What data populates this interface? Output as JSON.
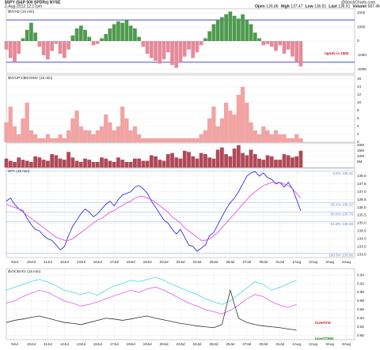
{
  "header": {
    "title": "$SPY (S&P 500 SPDRs) NYSE",
    "date": "2-Aug-2012 12:17pm",
    "source": "@StockCharts.com",
    "stats": [
      {
        "label": "Open",
        "value": "136.86"
      },
      {
        "label": "High",
        "value": "137.47"
      },
      {
        "label": "Low",
        "value": "136.81"
      },
      {
        "label": "Last",
        "value": "136.91"
      },
      {
        "label": "Volume",
        "value": "587.4M"
      },
      {
        "label": "Chg",
        "value": "-1.41 (-1.02%)"
      }
    ]
  },
  "chart_data": [
    {
      "type": "bar",
      "title": "$NYAD (15 min)",
      "colors": {
        "up": "#4f9a4f",
        "down": "#e58a9a"
      },
      "xlim": [
        0,
        84
      ],
      "ylim": [
        -2300,
        2300
      ],
      "yticks": [
        -2000,
        -1000,
        0,
        1000,
        2000
      ],
      "hlines": [
        {
          "value": 1500,
          "color": "#4a4ad8"
        },
        {
          "value": -1500,
          "color": "#4a4ad8"
        }
      ],
      "annotations": [
        {
          "text": "ngndv is 1500",
          "color": "#d01010"
        }
      ],
      "values": [
        -600,
        -1200,
        -1500,
        -900,
        200,
        800,
        1300,
        600,
        -400,
        -1000,
        -1300,
        -700,
        -200,
        -900,
        -1200,
        -600,
        400,
        900,
        1100,
        800,
        300,
        -300,
        -200,
        200,
        500,
        900,
        1200,
        1400,
        1300,
        1500,
        1100,
        900,
        300,
        -400,
        -900,
        -1200,
        -1400,
        -1600,
        -1300,
        -800,
        -1700,
        -1900,
        -1500,
        -1100,
        -600,
        -1200,
        -800,
        -300,
        200,
        700,
        1200,
        1500,
        1700,
        1900,
        2100,
        1800,
        1600,
        1900,
        1500,
        1200,
        600,
        200,
        -300,
        -200,
        -400,
        -700,
        -300,
        -900,
        -600,
        -1100,
        -1500,
        -1800
      ]
    },
    {
      "type": "area",
      "title": "$NYUPV:$NYDNV (15 min)",
      "color": "#f2a3a3",
      "xlim": [
        0,
        84
      ],
      "ylim": [
        0,
        17
      ],
      "yticks": [
        0,
        2,
        4,
        6,
        8,
        10,
        12,
        14,
        16
      ],
      "values": [
        5,
        9,
        4,
        2,
        6,
        10,
        3,
        2,
        1,
        1,
        2,
        1,
        1,
        2,
        1,
        3,
        6,
        8,
        4,
        3,
        3,
        2,
        3,
        4,
        7,
        5,
        3,
        4,
        9,
        6,
        3,
        4,
        2,
        1,
        1,
        1,
        1,
        1,
        1,
        1,
        1,
        1,
        1,
        1,
        1,
        1,
        1,
        2,
        3,
        6,
        9,
        4,
        6,
        10,
        8,
        7,
        12,
        14,
        10,
        5,
        3,
        2,
        4,
        3,
        2,
        3,
        2,
        2,
        1,
        1,
        2,
        1
      ]
    },
    {
      "type": "bar",
      "color": "#b04858",
      "xlim": [
        0,
        84
      ],
      "ylim": [
        0,
        22
      ],
      "yticks": [
        {
          "value": 5,
          "label": "5M"
        },
        {
          "value": 10,
          "label": "10M"
        },
        {
          "value": 15,
          "label": "15M"
        },
        {
          "value": 20,
          "label": "20M"
        }
      ],
      "values": [
        8,
        6,
        5,
        9,
        7,
        6,
        5,
        10,
        9,
        7,
        6,
        12,
        11,
        8,
        7,
        14,
        9,
        6,
        5,
        8,
        7,
        5,
        5,
        9,
        8,
        6,
        5,
        9,
        7,
        5,
        5,
        8,
        8,
        6,
        6,
        11,
        10,
        7,
        6,
        12,
        13,
        9,
        8,
        15,
        14,
        10,
        8,
        13,
        12,
        9,
        8,
        16,
        18,
        12,
        10,
        17,
        20,
        13,
        11,
        16,
        12,
        8,
        7,
        11,
        10,
        7,
        7,
        12,
        11,
        9,
        10,
        15
      ]
    },
    {
      "type": "line",
      "title": "SPY (15 min)",
      "xlim": [
        0,
        84
      ],
      "ylim": [
        132.8,
        138.5
      ],
      "yticks": [
        {
          "value": 133,
          "label": "133.0"
        },
        133.5,
        {
          "value": 134,
          "label": "134.0"
        },
        134.5,
        {
          "value": 135,
          "label": "135.0"
        },
        135.5,
        {
          "value": 136,
          "label": "136.0"
        },
        136.5,
        {
          "value": 137,
          "label": "137.0"
        },
        137.5,
        {
          "value": 138,
          "label": "138.0"
        }
      ],
      "xticks": [
        {
          "value": 2,
          "label": "9Jul"
        },
        {
          "value": 6,
          "label": "10Jul"
        },
        {
          "value": 10,
          "label": "11Jul"
        },
        {
          "value": 14,
          "label": "12Jul"
        },
        {
          "value": 18,
          "label": "13Jul"
        },
        {
          "value": 22,
          "label": "16Jul"
        },
        {
          "value": 26,
          "label": "17Jul"
        },
        {
          "value": 30,
          "label": "18Jul"
        },
        {
          "value": 34,
          "label": "19Jul"
        },
        {
          "value": 38,
          "label": "20Jul"
        },
        {
          "value": 42,
          "label": "23Jul"
        },
        {
          "value": 46,
          "label": "24Jul"
        },
        {
          "value": 50,
          "label": "25Jul"
        },
        {
          "value": 54,
          "label": "26Jul"
        },
        {
          "value": 58,
          "label": "27Jul"
        },
        {
          "value": 62,
          "label": "30Jul"
        },
        {
          "value": 66,
          "label": "31Jul"
        },
        {
          "value": 70,
          "label": "1Aug"
        },
        {
          "value": 74,
          "label": "2Aug"
        },
        {
          "value": 78,
          "label": "3Aug"
        },
        {
          "value": 82,
          "label": "6Aug"
        }
      ],
      "fib_levels": [
        {
          "label": "0.0% 138.31",
          "value": 138.31
        },
        {
          "label": "38.2% 136.32",
          "value": 136.32
        },
        {
          "label": "50.0% 135.70",
          "value": 135.7
        },
        {
          "label": "61.8% 135.08",
          "value": 135.08
        },
        {
          "label": "100.0% 133.09",
          "value": 133.09
        }
      ],
      "series": [
        {
          "color": "#1a1adc",
          "values": [
            136.4,
            136.6,
            136.2,
            135.9,
            135.8,
            135.3,
            134.9,
            134.6,
            134.5,
            134.2,
            134.0,
            133.9,
            133.6,
            133.3,
            133.5,
            134.2,
            134.8,
            135.2,
            135.6,
            135.9,
            135.7,
            135.4,
            135.6,
            135.9,
            136.2,
            136.4,
            136.1,
            136.5,
            136.8,
            136.9,
            137.0,
            137.3,
            137.4,
            137.2,
            136.9,
            136.4,
            136.0,
            135.6,
            135.2,
            135.0,
            134.6,
            134.3,
            134.6,
            134.1,
            133.6,
            133.5,
            133.2,
            133.4,
            133.6,
            134.2,
            134.4,
            134.9,
            135.4,
            135.9,
            136.3,
            136.6,
            137.0,
            137.5,
            138.0,
            138.2,
            138.3,
            138.0,
            138.2,
            137.9,
            137.8,
            137.5,
            137.6,
            137.3,
            137.6,
            137.2,
            136.5,
            135.8
          ]
        },
        {
          "color": "#e040e0",
          "values": [
            136.2,
            136.1,
            136.0,
            135.9,
            135.7,
            135.5,
            135.3,
            135.1,
            134.9,
            134.7,
            134.5,
            134.3,
            134.1,
            134.0,
            133.9,
            133.9,
            134.0,
            134.2,
            134.4,
            134.6,
            134.8,
            135.0,
            135.2,
            135.3,
            135.5,
            135.7,
            135.8,
            136.0,
            136.1,
            136.3,
            136.4,
            136.6,
            136.7,
            136.7,
            136.6,
            136.5,
            136.3,
            136.1,
            135.9,
            135.7,
            135.4,
            135.2,
            135.0,
            134.7,
            134.5,
            134.3,
            134.1,
            133.9,
            133.9,
            134.0,
            134.2,
            134.4,
            134.7,
            135.0,
            135.3,
            135.6,
            135.9,
            136.2,
            136.5,
            136.8,
            137.0,
            137.2,
            137.4,
            137.5,
            137.6,
            137.6,
            137.6,
            137.5,
            137.4,
            137.2,
            136.9,
            136.6
          ]
        }
      ]
    },
    {
      "type": "line",
      "title": "$VIX:$VXV (15 min)",
      "xlim": [
        0,
        42
      ],
      "ylim": [
        0.79,
        0.955
      ],
      "yticks": [
        {
          "value": 0.8,
          "label": "0.80"
        },
        0.82,
        0.84,
        0.86,
        0.88,
        {
          "value": 0.9,
          "label": "0.90"
        },
        0.92,
        0.94
      ],
      "xticks": [
        {
          "value": 1,
          "label": "9Jul"
        },
        {
          "value": 3,
          "label": "10Jul"
        },
        {
          "value": 5,
          "label": "11Jul"
        },
        {
          "value": 7,
          "label": "12Jul"
        },
        {
          "value": 9,
          "label": "13Jul"
        },
        {
          "value": 11,
          "label": "16Jul"
        },
        {
          "value": 13,
          "label": "17Jul"
        },
        {
          "value": 15,
          "label": "18Jul"
        },
        {
          "value": 17,
          "label": "19Jul"
        },
        {
          "value": 19,
          "label": "20Jul"
        },
        {
          "value": 21,
          "label": "23Jul"
        },
        {
          "value": 23,
          "label": "24Jul"
        },
        {
          "value": 25,
          "label": "25Jul"
        },
        {
          "value": 27,
          "label": "26Jul"
        },
        {
          "value": 29,
          "label": "27Jul"
        },
        {
          "value": 31,
          "label": "30Jul"
        },
        {
          "value": 33,
          "label": "31Jul"
        },
        {
          "value": 35,
          "label": "1Aug"
        },
        {
          "value": 37,
          "label": "2Aug"
        },
        {
          "value": 39,
          "label": "3Aug"
        },
        {
          "value": 41,
          "label": "6Aug"
        }
      ],
      "annotations": [
        {
          "text": "invertVIX",
          "color": "#d01010"
        },
        {
          "text": "invertTRIN",
          "color": "#1a8a1a"
        }
      ],
      "series": [
        {
          "color": "#46d8e0",
          "values": [
            0.905,
            0.912,
            0.918,
            0.925,
            0.93,
            0.924,
            0.915,
            0.905,
            0.9,
            0.895,
            0.9,
            0.893,
            0.905,
            0.915,
            0.92,
            0.928,
            0.925,
            0.93,
            0.935,
            0.928,
            0.918,
            0.91,
            0.902,
            0.895,
            0.885,
            0.878,
            0.872,
            0.88,
            0.895,
            0.91,
            0.925,
            0.918,
            0.905,
            0.912,
            0.92,
            0.928
          ]
        },
        {
          "color": "#e060e0",
          "values": [
            0.875,
            0.88,
            0.89,
            0.898,
            0.905,
            0.9,
            0.89,
            0.88,
            0.875,
            0.868,
            0.872,
            0.878,
            0.885,
            0.892,
            0.898,
            0.905,
            0.9,
            0.908,
            0.912,
            0.905,
            0.895,
            0.885,
            0.875,
            0.868,
            0.86,
            0.855,
            0.85,
            0.858,
            0.87,
            0.885,
            0.895,
            0.89,
            0.878,
            0.87,
            0.865,
            0.872
          ]
        },
        {
          "color": "#333333",
          "values": [
            0.83,
            0.835,
            0.838,
            0.842,
            0.845,
            0.84,
            0.835,
            0.83,
            0.828,
            0.825,
            0.83,
            0.835,
            0.84,
            0.838,
            0.835,
            0.838,
            0.842,
            0.845,
            0.84,
            0.836,
            0.832,
            0.828,
            0.825,
            0.822,
            0.82,
            0.818,
            0.825,
            0.905,
            0.84,
            0.83,
            0.825,
            0.822,
            0.82,
            0.818,
            0.815,
            0.812
          ]
        }
      ]
    }
  ]
}
